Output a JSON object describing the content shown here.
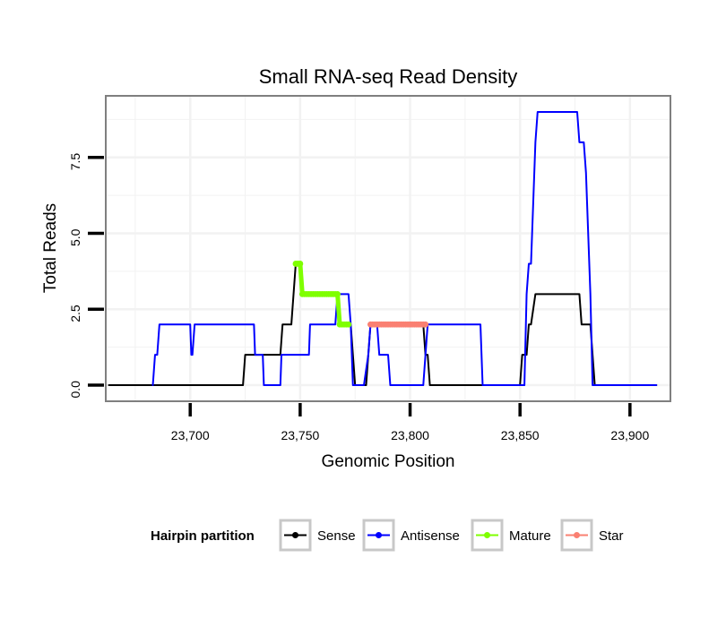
{
  "chart_data": {
    "type": "line",
    "title": "Small RNA-seq Read Density",
    "xlabel": "Genomic Position",
    "ylabel": "Total Reads",
    "xlim": [
      23662,
      23918
    ],
    "ylim": [
      -0.5,
      9.5
    ],
    "x_ticks": [
      23700,
      23750,
      23800,
      23850,
      23900
    ],
    "x_tick_labels": [
      "23,700",
      "23,750",
      "23,800",
      "23,850",
      "23,900"
    ],
    "y_ticks": [
      0,
      2.5,
      5,
      7.5
    ],
    "y_tick_labels": [
      "0.0",
      "2.5",
      "5.0",
      "7.5"
    ],
    "grid": true,
    "legend": {
      "title": "Hairpin partition",
      "position": "bottom",
      "entries": [
        "Sense",
        "Antisense",
        "Mature",
        "Star"
      ]
    },
    "colors": {
      "Sense": "#000000",
      "Antisense": "#0000ff",
      "Mature": "#7fff00",
      "Star": "#fa8072",
      "panel_border": "#7f7f7f",
      "grid": "#f2f2f2"
    },
    "series": [
      {
        "name": "Sense",
        "x": [
          23663,
          23724,
          23725,
          23733,
          23734,
          23740,
          23741,
          23742,
          23746,
          23747,
          23748,
          23750,
          23751,
          23767,
          23768,
          23769,
          23773,
          23774,
          23775,
          23780,
          23781,
          23782,
          23806,
          23807,
          23808,
          23809,
          23850,
          23851,
          23853,
          23854,
          23855,
          23857,
          23858,
          23877,
          23878,
          23882,
          23883,
          23884,
          23912
        ],
        "y": [
          0,
          0,
          1,
          1,
          1,
          1,
          1,
          2,
          2,
          3,
          4,
          4,
          3,
          3,
          2,
          2,
          2,
          1,
          0,
          0,
          1,
          2,
          2,
          1,
          1,
          0,
          0,
          1,
          1,
          2,
          2,
          3,
          3,
          3,
          2,
          2,
          1,
          0,
          0
        ]
      },
      {
        "name": "Antisense",
        "x": [
          23683,
          23684,
          23685,
          23686,
          23687,
          23687,
          23700,
          23700.5,
          23701,
          23702,
          23725,
          23726,
          23729,
          23729.5,
          23730,
          23733,
          23733.5,
          23734,
          23741,
          23741.5,
          23742,
          23754,
          23754.5,
          23755,
          23766,
          23767,
          23768,
          23772,
          23773,
          23774,
          23779,
          23781,
          23782,
          23783,
          23785,
          23786,
          23787,
          23790,
          23791,
          23792,
          23806,
          23807,
          23808,
          23809,
          23832,
          23833,
          23852,
          23853,
          23854,
          23855,
          23856,
          23857,
          23858,
          23860,
          23876,
          23877,
          23879,
          23880,
          23882,
          23883,
          23912
        ],
        "y": [
          0,
          1,
          1,
          2,
          2,
          2,
          2,
          1,
          1,
          2,
          2,
          2,
          2,
          1,
          1,
          1,
          0,
          0,
          0,
          1,
          1,
          1,
          2,
          2,
          2,
          3,
          3,
          3,
          2,
          0,
          0,
          1,
          2,
          2,
          2,
          1,
          1,
          1,
          0,
          0,
          0,
          1,
          2,
          2,
          2,
          0,
          0,
          3,
          4,
          4,
          6,
          8,
          9,
          9,
          9,
          8,
          8,
          7,
          3,
          0,
          0
        ]
      },
      {
        "name": "Mature",
        "x": [
          23748,
          23749,
          23750,
          23751,
          23752,
          23753,
          23754,
          23755,
          23756,
          23757,
          23758,
          23759,
          23760,
          23761,
          23762,
          23763,
          23764,
          23765,
          23766,
          23767,
          23768,
          23769,
          23770,
          23771,
          23772
        ],
        "y": [
          4,
          4,
          4,
          3,
          3,
          3,
          3,
          3,
          3,
          3,
          3,
          3,
          3,
          3,
          3,
          3,
          3,
          3,
          3,
          3,
          2,
          2,
          2,
          2,
          2
        ]
      },
      {
        "name": "Star",
        "x": [
          23782,
          23783,
          23784,
          23785,
          23786,
          23787,
          23788,
          23789,
          23790,
          23791,
          23792,
          23793,
          23794,
          23795,
          23796,
          23797,
          23798,
          23799,
          23800,
          23801,
          23802,
          23803,
          23804,
          23805,
          23806,
          23807
        ],
        "y": [
          2,
          2,
          2,
          2,
          2,
          2,
          2,
          2,
          2,
          2,
          2,
          2,
          2,
          2,
          2,
          2,
          2,
          2,
          2,
          2,
          2,
          2,
          2,
          2,
          2,
          2
        ]
      }
    ]
  }
}
